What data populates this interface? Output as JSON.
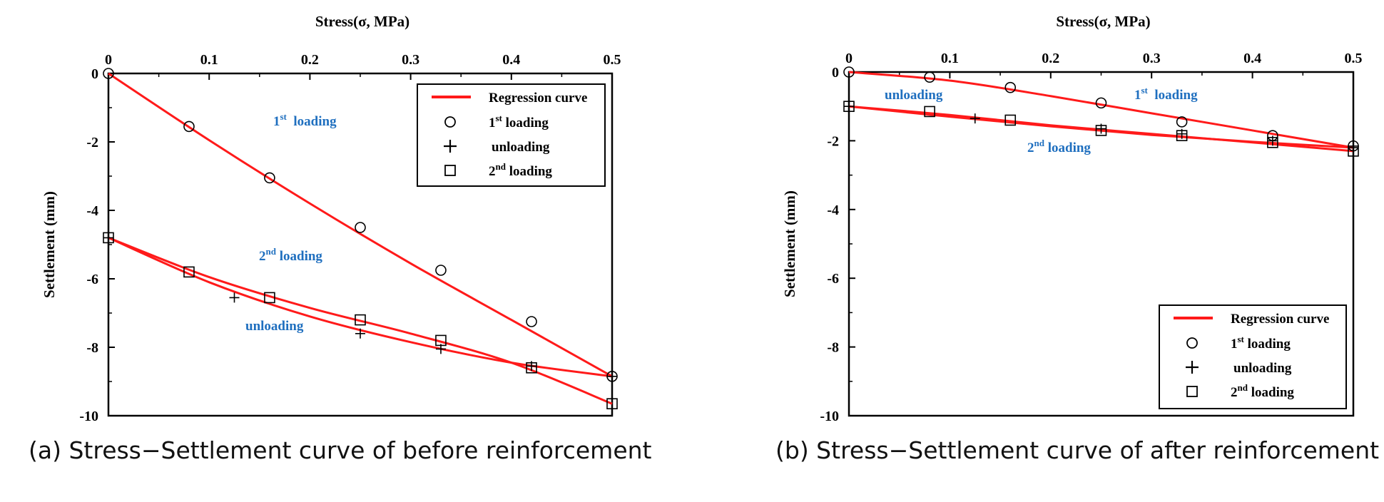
{
  "chart_data": [
    {
      "type": "line",
      "panel": "a",
      "caption": "(a) Stress−Settlement curve of before reinforcement",
      "xlabel": "Stress(σ, MPa)",
      "ylabel": "Settlement (mm)",
      "xlim": [
        0,
        0.5
      ],
      "ylim": [
        -10,
        0
      ],
      "x_ticks": [
        "0",
        "0.1",
        "0.2",
        "0.3",
        "0.4",
        "0.5"
      ],
      "y_ticks": [
        "0",
        "-2",
        "-4",
        "-6",
        "-8",
        "-10"
      ],
      "x_axis_position": "top",
      "legend_position": "top-right",
      "legend": {
        "regression": "Regression curve",
        "first_loading": "1",
        "first_loading_sup": "st",
        "first_loading_rest": " loading",
        "unloading": "unloading",
        "second_loading": "2",
        "second_loading_sup": "nd",
        "second_loading_rest": " loading"
      },
      "annotations": {
        "first": {
          "base": "1",
          "sup": "st",
          "rest": "  loading"
        },
        "second": {
          "base": "2",
          "sup": "nd",
          "rest": " loading"
        },
        "unloading": {
          "text": "unloading"
        }
      },
      "series": [
        {
          "name": "1st loading",
          "marker": "circle",
          "x": [
            0,
            0.08,
            0.16,
            0.25,
            0.33,
            0.42,
            0.5
          ],
          "y": [
            0,
            -1.55,
            -3.05,
            -4.5,
            -5.75,
            -7.25,
            -8.85
          ]
        },
        {
          "name": "unloading",
          "marker": "plus",
          "x": [
            0.5,
            0.42,
            0.33,
            0.25,
            0.125,
            0
          ],
          "y": [
            -8.85,
            -8.55,
            -8.05,
            -7.6,
            -6.55,
            -4.8
          ]
        },
        {
          "name": "2nd loading",
          "marker": "square",
          "x": [
            0,
            0.08,
            0.16,
            0.25,
            0.33,
            0.42,
            0.5
          ],
          "y": [
            -4.8,
            -5.8,
            -6.55,
            -7.2,
            -7.8,
            -8.6,
            -9.65
          ]
        }
      ],
      "regression_curves": [
        {
          "for": "1st loading",
          "x": [
            0,
            0.1,
            0.2,
            0.3,
            0.4,
            0.5
          ],
          "y": [
            0,
            -1.95,
            -3.8,
            -5.55,
            -7.2,
            -8.85
          ]
        },
        {
          "for": "unloading",
          "x": [
            0,
            0.1,
            0.2,
            0.3,
            0.4,
            0.5
          ],
          "y": [
            -4.8,
            -6.1,
            -7.1,
            -7.85,
            -8.45,
            -8.85
          ]
        },
        {
          "for": "2nd loading",
          "x": [
            0,
            0.1,
            0.2,
            0.3,
            0.4,
            0.5
          ],
          "y": [
            -4.8,
            -5.95,
            -6.85,
            -7.6,
            -8.45,
            -9.65
          ]
        }
      ]
    },
    {
      "type": "line",
      "panel": "b",
      "caption": "(b) Stress−Settlement curve of after reinforcement",
      "xlabel": "Stress(σ, MPa)",
      "ylabel": "Settlement (mm)",
      "xlim": [
        0,
        0.5
      ],
      "ylim": [
        -10,
        0
      ],
      "x_ticks": [
        "0",
        "0.1",
        "0.2",
        "0.3",
        "0.4",
        "0.5"
      ],
      "y_ticks": [
        "0",
        "-2",
        "-4",
        "-6",
        "-8",
        "-10"
      ],
      "x_axis_position": "top",
      "legend_position": "bottom-right",
      "legend": {
        "regression": "Regression curve",
        "first_loading": "1",
        "first_loading_sup": "st",
        "first_loading_rest": " loading",
        "unloading": "unloading",
        "second_loading": "2",
        "second_loading_sup": "nd",
        "second_loading_rest": " loading"
      },
      "annotations": {
        "first": {
          "base": "1",
          "sup": "st",
          "rest": "  loading"
        },
        "second": {
          "base": "2",
          "sup": "nd",
          "rest": " loading"
        },
        "unloading": {
          "text": "unloading"
        }
      },
      "series": [
        {
          "name": "1st loading",
          "marker": "circle",
          "x": [
            0,
            0.08,
            0.16,
            0.25,
            0.33,
            0.42,
            0.5
          ],
          "y": [
            0,
            -0.15,
            -0.45,
            -0.9,
            -1.45,
            -1.85,
            -2.15
          ]
        },
        {
          "name": "unloading",
          "marker": "plus",
          "x": [
            0.5,
            0.42,
            0.33,
            0.25,
            0.125,
            0
          ],
          "y": [
            -2.2,
            -2.0,
            -1.8,
            -1.65,
            -1.35,
            -1.0
          ]
        },
        {
          "name": "2nd loading",
          "marker": "square",
          "x": [
            0,
            0.08,
            0.16,
            0.25,
            0.33,
            0.42,
            0.5
          ],
          "y": [
            -1.0,
            -1.15,
            -1.4,
            -1.7,
            -1.85,
            -2.05,
            -2.3
          ]
        }
      ],
      "regression_curves": [
        {
          "for": "1st loading",
          "x": [
            0,
            0.1,
            0.2,
            0.3,
            0.4,
            0.5
          ],
          "y": [
            0,
            -0.25,
            -0.7,
            -1.2,
            -1.7,
            -2.2
          ]
        },
        {
          "for": "unloading",
          "x": [
            0,
            0.1,
            0.2,
            0.3,
            0.4,
            0.5
          ],
          "y": [
            -1.0,
            -1.3,
            -1.58,
            -1.83,
            -2.03,
            -2.2
          ]
        },
        {
          "for": "2nd loading",
          "x": [
            0,
            0.1,
            0.2,
            0.3,
            0.4,
            0.5
          ],
          "y": [
            -1.0,
            -1.25,
            -1.55,
            -1.8,
            -2.05,
            -2.3
          ]
        }
      ]
    }
  ],
  "colors": {
    "regression": "#ff1a1a",
    "annotation": "#1f6fbf",
    "axis": "#000000",
    "marker": "#000000"
  }
}
